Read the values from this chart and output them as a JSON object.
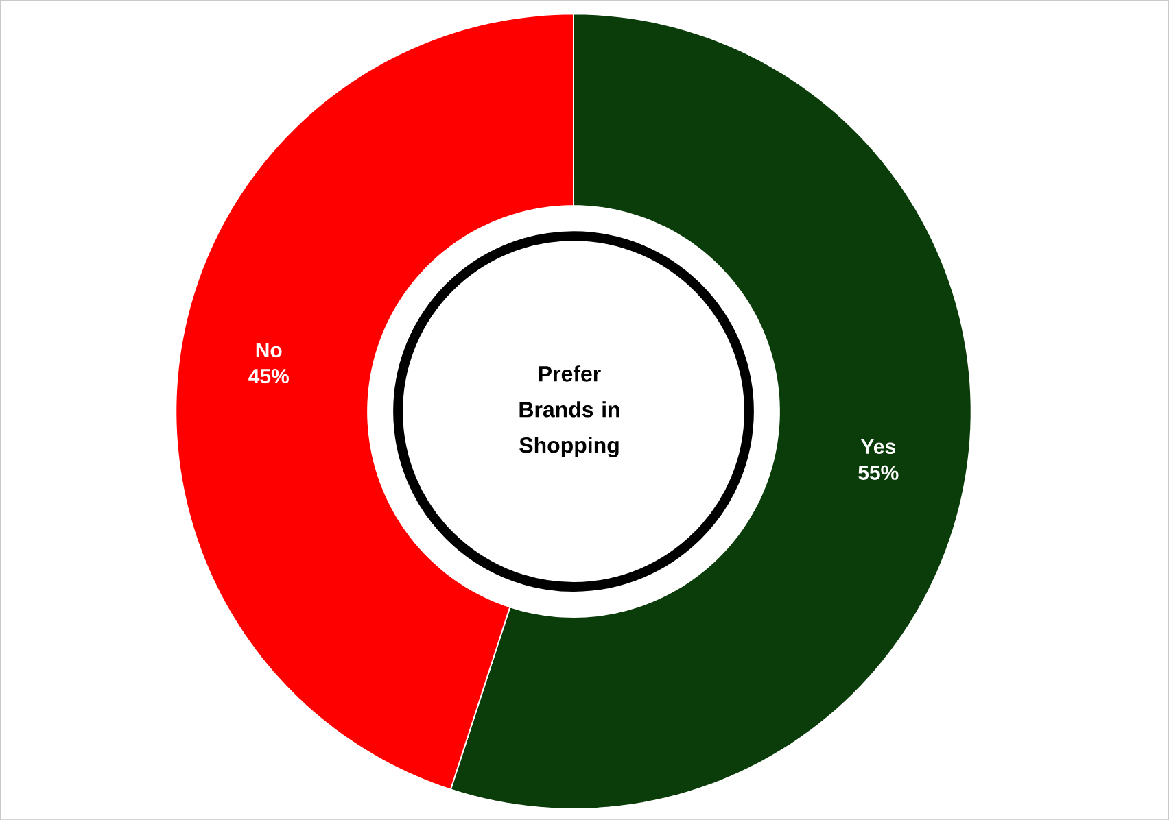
{
  "chart_data": {
    "type": "donut",
    "title": "Prefer Brands in Shopping",
    "categories": [
      "Yes",
      "No"
    ],
    "values": [
      55,
      45
    ],
    "value_labels": [
      "55%",
      "45%"
    ],
    "colors": [
      "#0b3d0b",
      "#ff0000"
    ]
  }
}
